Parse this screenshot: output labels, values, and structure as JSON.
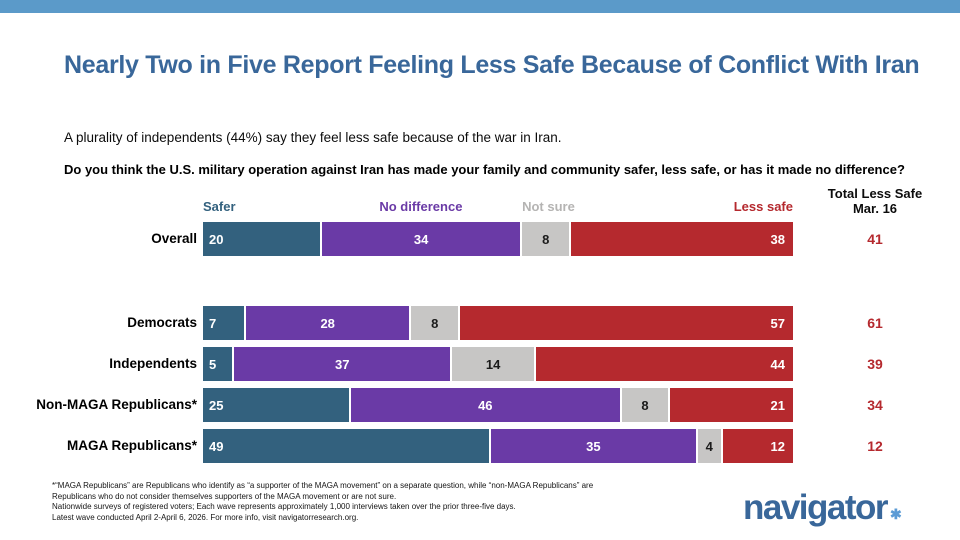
{
  "page": {
    "top_bar_color": "#5b9ac9",
    "background": "#ffffff"
  },
  "header": {
    "title": "Nearly Two in Five Report Feeling Less Safe Because of Conflict With Iran",
    "title_color": "#39679a",
    "subtitle": "A plurality of independents (44%) say they feel less safe because of the war in Iran.",
    "question": "Do you think the U.S. military operation against Iran has made your family and community safer, less safe, or has it made no difference?"
  },
  "legend": {
    "items": [
      {
        "label": "Safer",
        "color": "#33617e"
      },
      {
        "label": "No difference",
        "color": "#6a3aa6"
      },
      {
        "label": "Not sure",
        "color": "#b5b4b3"
      },
      {
        "label": "Less safe",
        "color": "#b5292e"
      }
    ]
  },
  "total_column": {
    "line1": "Total Less Safe",
    "line2": "Mar. 16",
    "value_color": "#b5292e"
  },
  "chart_data": {
    "type": "bar",
    "orientation": "horizontal-stacked",
    "xlim": [
      0,
      100
    ],
    "categories": [
      "Overall",
      "Democrats",
      "Independents",
      "Non-MAGA Republicans*",
      "MAGA Republicans*"
    ],
    "series": [
      {
        "name": "Safer",
        "color": "#33617e",
        "text_color": "#ffffff",
        "values": [
          20,
          7,
          5,
          25,
          49
        ]
      },
      {
        "name": "No difference",
        "color": "#6a3aa6",
        "text_color": "#ffffff",
        "values": [
          34,
          28,
          37,
          46,
          35
        ]
      },
      {
        "name": "Not sure",
        "color": "#c7c6c5",
        "text_color": "#1b1b1b",
        "values": [
          8,
          8,
          14,
          8,
          4
        ]
      },
      {
        "name": "Less safe",
        "color": "#b5292e",
        "text_color": "#ffffff",
        "values": [
          38,
          57,
          44,
          21,
          12
        ]
      }
    ],
    "extra_column": {
      "header": "Total Less Safe Mar. 16",
      "values": [
        41,
        61,
        39,
        34,
        12
      ]
    }
  },
  "footnote": {
    "lines": [
      "*“MAGA Republicans” are Republicans who identify as “a supporter of the MAGA movement” on a separate question, while “non-MAGA Republicans” are",
      "Republicans who do not consider themselves supporters of the MAGA movement or are not sure.",
      "Nationwide surveys of registered voters; Each wave represents approximately 1,000 interviews taken over the prior three-five days.",
      "Latest wave conducted April 2-April 6, 2026. For more info, visit navigatorresearch.org."
    ]
  },
  "logo": {
    "text": "navigator",
    "mark": "✱"
  }
}
